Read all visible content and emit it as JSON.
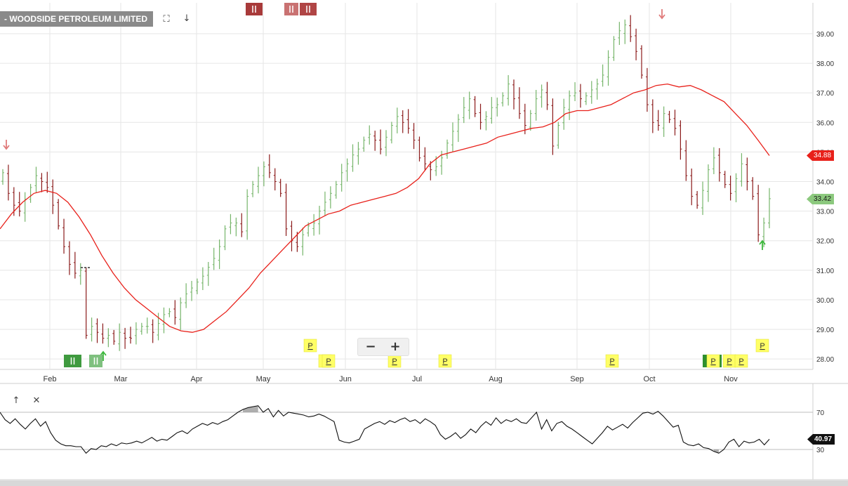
{
  "header": {
    "ticker_label": "- WOODSIDE PETROLEUM LIMITED",
    "fullscreen_icon": "fullscreen-icon",
    "download_icon": "arrow-down-icon"
  },
  "zoom": {
    "minus_label": "−",
    "plus_label": "+"
  },
  "indicator_toolbar": {
    "up_icon": "arrow-up-icon",
    "close_icon": "close-icon"
  },
  "colors": {
    "up_bar": "#76b56a",
    "down_bar": "#8b1a1a",
    "ma_line": "#e8201a",
    "ma_tag": "#e8201a",
    "price_tag": "#8cc97e",
    "signal_green": "#2e9a2e",
    "signal_red": "#a83232",
    "p_marker": "#ffff66",
    "grid": "#e6e6e6"
  },
  "chart_data": [
    {
      "type": "ohlc",
      "title": "- WOODSIDE PETROLEUM LIMITED",
      "x_labels": [
        "Feb",
        "Mar",
        "Apr",
        "May",
        "Jun",
        "Jul",
        "Aug",
        "Sep",
        "Oct",
        "Nov"
      ],
      "y_ticks": [
        "28.00",
        "29.00",
        "30.00",
        "31.00",
        "32.00",
        "33.00",
        "34.00",
        "35.00",
        "36.00",
        "37.00",
        "38.00",
        "39.00"
      ],
      "ylim": [
        27.7,
        40.1
      ],
      "y_axis_side": "right",
      "grid": true,
      "last_price": "33.42",
      "last_ma": "34.88",
      "close_series": [
        34.3,
        33.6,
        33.2,
        33.0,
        33.4,
        33.8,
        34.2,
        34.0,
        33.8,
        33.2,
        32.5,
        31.8,
        31.2,
        30.9,
        31.0,
        28.8,
        29.1,
        28.9,
        28.7,
        28.8,
        28.6,
        28.9,
        28.7,
        28.7,
        29.0,
        29.1,
        29.1,
        28.9,
        29.2,
        29.5,
        29.6,
        29.4,
        29.9,
        30.2,
        30.4,
        30.6,
        30.8,
        31.1,
        31.4,
        31.8,
        32.4,
        32.6,
        32.6,
        32.3,
        33.5,
        33.9,
        34.2,
        34.5,
        34.3,
        34.0,
        33.6,
        32.4,
        32.0,
        31.8,
        32.2,
        32.5,
        32.6,
        33.0,
        33.3,
        33.6,
        33.9,
        34.3,
        34.6,
        34.9,
        35.1,
        35.4,
        35.6,
        35.4,
        35.1,
        35.5,
        35.9,
        36.2,
        36.0,
        35.8,
        35.4,
        34.8,
        34.6,
        34.4,
        34.5,
        34.8,
        35.3,
        35.7,
        36.1,
        36.5,
        36.8,
        36.3,
        36.0,
        36.2,
        36.5,
        36.6,
        36.9,
        37.3,
        36.8,
        36.3,
        35.9,
        36.3,
        36.8,
        37.1,
        36.6,
        35.2,
        35.9,
        36.5,
        36.9,
        37.0,
        36.8,
        36.9,
        37.1,
        37.3,
        37.6,
        38.2,
        38.8,
        39.1,
        39.3,
        38.9,
        38.4,
        37.6,
        36.6,
        36.0,
        35.9,
        36.3,
        36.1,
        35.8,
        35.1,
        34.2,
        33.5,
        33.2,
        33.7,
        34.4,
        34.8,
        34.3,
        33.9,
        33.6,
        34.1,
        34.6,
        34.0,
        33.5,
        32.2,
        32.6,
        33.42
      ],
      "moving_average": [
        32.4,
        32.9,
        33.3,
        33.6,
        33.7,
        33.6,
        33.3,
        32.8,
        32.2,
        31.5,
        30.9,
        30.4,
        30.0,
        29.7,
        29.4,
        29.1,
        28.95,
        28.9,
        29.0,
        29.3,
        29.6,
        30.0,
        30.4,
        30.9,
        31.3,
        31.7,
        32.1,
        32.5,
        32.7,
        32.9,
        33.0,
        33.2,
        33.3,
        33.4,
        33.5,
        33.6,
        33.8,
        34.1,
        34.6,
        34.9,
        35.0,
        35.1,
        35.2,
        35.3,
        35.5,
        35.6,
        35.7,
        35.8,
        35.85,
        36.0,
        36.3,
        36.4,
        36.4,
        36.5,
        36.6,
        36.8,
        37.0,
        37.1,
        37.25,
        37.3,
        37.2,
        37.25,
        37.1,
        36.9,
        36.7,
        36.3,
        35.9,
        35.4,
        34.88
      ]
    },
    {
      "type": "line",
      "title": "",
      "y_ticks": [
        "30",
        "70"
      ],
      "ylim": [
        20,
        85
      ],
      "overbought": 70,
      "oversold": 30,
      "last_value": "40.97",
      "values": [
        70,
        62,
        58,
        63,
        57,
        52,
        58,
        63,
        55,
        60,
        48,
        40,
        36,
        34,
        34,
        33,
        33,
        26,
        31,
        30,
        34,
        33,
        36,
        34,
        37,
        36,
        37,
        39,
        37,
        40,
        43,
        39,
        41,
        40,
        44,
        48,
        50,
        47,
        52,
        55,
        58,
        56,
        59,
        57,
        60,
        62,
        66,
        70,
        73,
        75,
        76,
        77,
        70,
        74,
        65,
        72,
        66,
        70,
        69,
        68,
        67,
        65,
        66,
        68,
        66,
        63,
        60,
        40,
        38,
        37,
        39,
        41,
        52,
        55,
        58,
        60,
        57,
        61,
        59,
        62,
        64,
        60,
        62,
        58,
        63,
        60,
        56,
        46,
        41,
        44,
        48,
        42,
        46,
        52,
        48,
        55,
        60,
        56,
        64,
        58,
        62,
        60,
        63,
        59,
        58,
        64,
        70,
        52,
        62,
        50,
        58,
        60,
        55,
        52,
        48,
        44,
        40,
        36,
        42,
        48,
        55,
        51,
        54,
        57,
        53,
        59,
        64,
        69,
        70,
        68,
        71,
        66,
        60,
        54,
        56,
        38,
        35,
        34,
        36,
        32,
        31,
        28,
        26,
        30,
        38,
        41,
        33,
        39,
        37,
        38,
        41,
        35,
        41
      ]
    }
  ]
}
